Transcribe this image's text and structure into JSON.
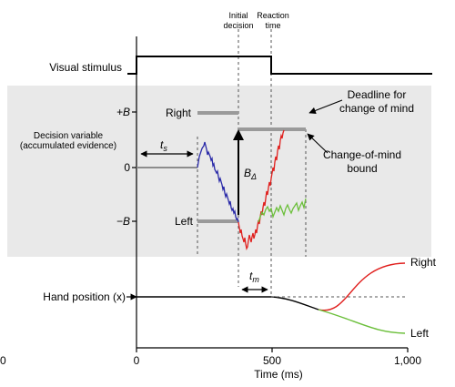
{
  "colors": {
    "panel_bg": "#e9e9e9",
    "bound_gray": "#9a9a9a",
    "trace_blue": "#2a2aa8",
    "trace_red": "#e0201e",
    "trace_green": "#6bbf3a",
    "black": "#000000"
  },
  "labels": {
    "initial_decision": [
      "Initial",
      "decision"
    ],
    "reaction_time": [
      "Reaction",
      "time"
    ],
    "visual_stimulus": "Visual stimulus",
    "plus_b": "+B",
    "minus_b": "−B",
    "zero": "0",
    "right_bound": "Right",
    "left_bound": "Left",
    "decision_variable": [
      "Decision variable",
      "(accumulated evidence)"
    ],
    "t_s": "t",
    "t_s_sub": "s",
    "b_delta": "B",
    "b_delta_sub": "Δ",
    "deadline": [
      "Deadline for",
      "change of mind"
    ],
    "com_bound": [
      "Change-of-mind",
      "bound"
    ],
    "t_m": "t",
    "t_m_sub": "m",
    "hand_position": "Hand position (x)",
    "hand_right": "Right",
    "hand_left": "Left",
    "left_edge_zero": "0"
  },
  "time_axis": {
    "title": "Time (ms)",
    "min": 0,
    "max": 1000,
    "ticks": [
      {
        "value": 0,
        "label": "0"
      },
      {
        "value": 500,
        "label": "500"
      },
      {
        "value": 1000,
        "label": "1,000"
      }
    ]
  }
}
